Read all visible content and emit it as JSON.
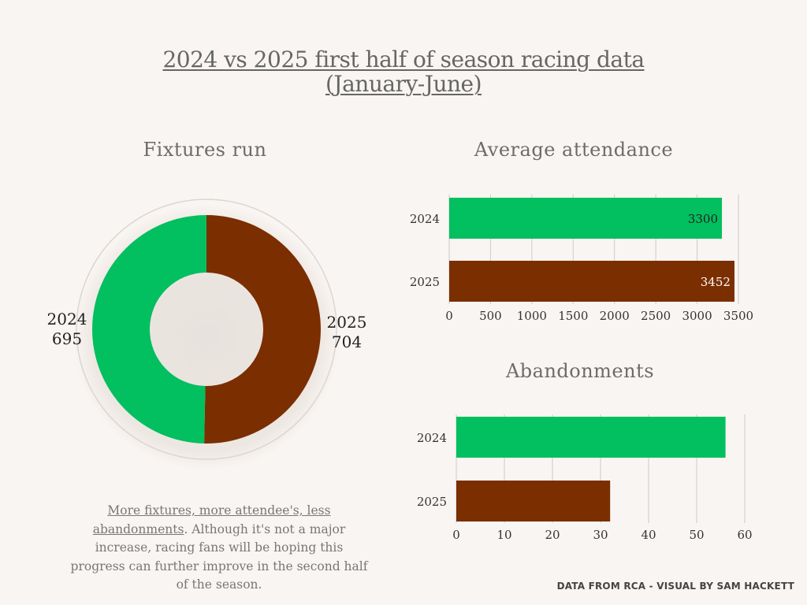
{
  "title": {
    "line1": "2024 vs 2025 first half of season racing data",
    "line2": "(January-June)"
  },
  "caption": {
    "lead": "More fixtures, more attendee's, less abandonments",
    "body": ". Although it's not a major increase, racing fans will be hoping this progress can further improve in the second half of the season."
  },
  "credit": "DATA FROM RCA - VISUAL BY SAM HACKETT",
  "colors": {
    "y2024": "#02bf5f",
    "y2025": "#7b2e00",
    "grid": "#cccccc",
    "background": "#f9f5f2"
  },
  "chart_data": [
    {
      "type": "pie",
      "title": "Fixtures run",
      "donut": true,
      "labels": [
        "2024",
        "2025"
      ],
      "values": [
        695,
        704
      ],
      "legend": "none"
    },
    {
      "type": "bar",
      "orientation": "horizontal",
      "title": "Average attendance",
      "categories": [
        "2024",
        "2025"
      ],
      "values": [
        3300,
        3452
      ],
      "data_labels": [
        "3300",
        "3452"
      ],
      "xlim": [
        0,
        3500
      ],
      "xticks": [
        0,
        500,
        1000,
        1500,
        2000,
        2500,
        3000,
        3500
      ],
      "grid": "vertical"
    },
    {
      "type": "bar",
      "orientation": "horizontal",
      "title": "Abandonments",
      "categories": [
        "2024",
        "2025"
      ],
      "values": [
        56,
        32
      ],
      "xlim": [
        0,
        60
      ],
      "xticks": [
        0,
        10,
        20,
        30,
        40,
        50,
        60
      ],
      "grid": "vertical"
    }
  ]
}
